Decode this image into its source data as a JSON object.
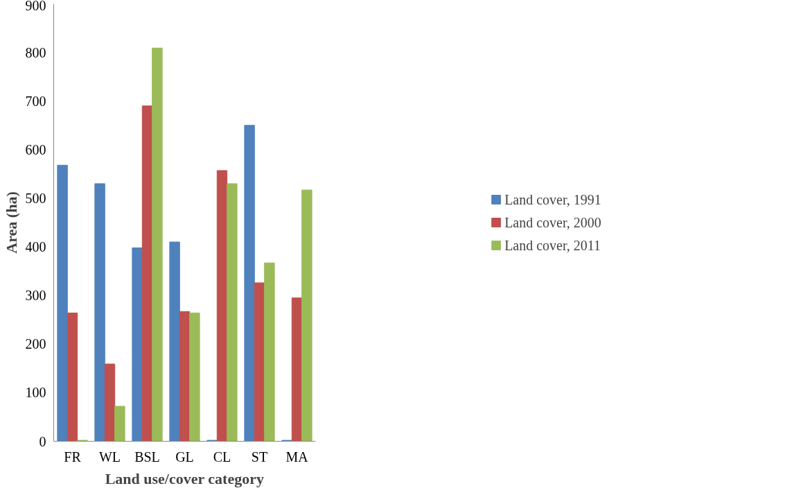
{
  "chart_data": {
    "type": "bar",
    "xlabel": "Land use/cover category",
    "ylabel": "Area (ha)",
    "categories": [
      "FR",
      "WL",
      "BSL",
      "GL",
      "CL",
      "ST",
      "MA"
    ],
    "series": [
      {
        "name": "Land cover, 1991",
        "color": "#4f81bd",
        "values": [
          568,
          530,
          398,
          410,
          2,
          650,
          2
        ]
      },
      {
        "name": "Land cover, 2000",
        "color": "#c0504d",
        "values": [
          264,
          159,
          690,
          267,
          557,
          326,
          295
        ]
      },
      {
        "name": "Land cover, 2011",
        "color": "#9bbb59",
        "values": [
          2,
          72,
          809,
          264,
          530,
          367,
          517
        ]
      }
    ],
    "ylim": [
      0,
      900
    ],
    "yticks": [
      0,
      100,
      200,
      300,
      400,
      500,
      600,
      700,
      800,
      900
    ],
    "grid": false,
    "legend": "right"
  }
}
